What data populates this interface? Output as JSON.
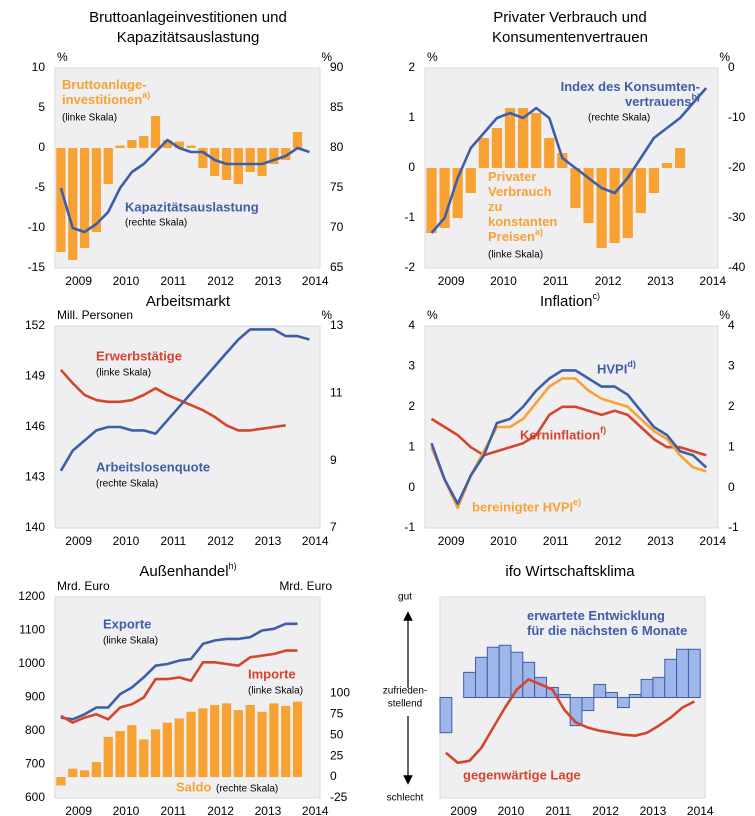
{
  "chart_data": [
    {
      "type": "combo",
      "title": "Bruttoanlageinvestitionen und\nKapazitätsauslastung",
      "y_unit": "%",
      "y2_unit": "%",
      "ylim": [
        -15,
        10
      ],
      "yticks": [
        -15,
        -10,
        -5,
        0,
        5,
        10
      ],
      "y2lim": [
        65,
        90
      ],
      "y2ticks": [
        65,
        70,
        75,
        80,
        85,
        90
      ],
      "xlim": [
        2009,
        2014.6
      ],
      "xticks": [
        {
          "value": 2009.5,
          "label": "2009"
        },
        {
          "value": 2010.5,
          "label": "2010"
        },
        {
          "value": 2011.5,
          "label": "2011"
        },
        {
          "value": 2012.5,
          "label": "2012"
        },
        {
          "value": 2013.5,
          "label": "2013"
        },
        {
          "value": 2014.5,
          "label": "2014"
        }
      ],
      "x": [
        2009.125,
        2009.375,
        2009.625,
        2009.875,
        2010.125,
        2010.375,
        2010.625,
        2010.875,
        2011.125,
        2011.375,
        2011.625,
        2011.875,
        2012.125,
        2012.375,
        2012.625,
        2012.875,
        2013.125,
        2013.375,
        2013.625,
        2013.875,
        2014.125,
        2014.375
      ],
      "series": [
        {
          "name": "Bruttoanlage-\ninvestitionen",
          "sup": "a)",
          "scale": "(linke Skala)",
          "kind": "bar",
          "axis": "y",
          "color": "#f7a233",
          "values": [
            -13,
            -14,
            -12.5,
            -10.5,
            -4.5,
            0.3,
            1,
            1.5,
            4,
            1,
            0.8,
            0.3,
            -2.5,
            -3.5,
            -4,
            -4.5,
            -3,
            -3.5,
            -2,
            -1.5,
            2,
            null
          ]
        },
        {
          "name": "Kapazitätsauslastung",
          "scale": "(rechte Skala)",
          "kind": "line",
          "axis": "y2",
          "color": "#3f5ea8",
          "values": [
            75,
            70,
            69.5,
            70.5,
            72,
            75,
            77,
            78,
            79.5,
            81,
            80,
            79.5,
            79.5,
            78.5,
            78,
            78,
            78,
            78,
            78.5,
            79,
            80,
            79.5
          ]
        }
      ]
    },
    {
      "type": "combo",
      "title": "Privater Verbrauch und\nKonsumentenvertrauen",
      "y_unit": "%",
      "y2_unit": "%",
      "ylim": [
        -2,
        2
      ],
      "yticks": [
        -2,
        -1,
        0,
        1,
        2
      ],
      "y2lim": [
        -40,
        0
      ],
      "y2ticks": [
        -40,
        -30,
        -20,
        -10,
        0
      ],
      "xlim": [
        2009,
        2014.6
      ],
      "xticks": [
        {
          "value": 2009.5,
          "label": "2009"
        },
        {
          "value": 2010.5,
          "label": "2010"
        },
        {
          "value": 2011.5,
          "label": "2011"
        },
        {
          "value": 2012.5,
          "label": "2012"
        },
        {
          "value": 2013.5,
          "label": "2013"
        },
        {
          "value": 2014.5,
          "label": "2014"
        }
      ],
      "x": [
        2009.125,
        2009.375,
        2009.625,
        2009.875,
        2010.125,
        2010.375,
        2010.625,
        2010.875,
        2011.125,
        2011.375,
        2011.625,
        2011.875,
        2012.125,
        2012.375,
        2012.625,
        2012.875,
        2013.125,
        2013.375,
        2013.625,
        2013.875,
        2014.125,
        2014.375
      ],
      "series": [
        {
          "name": "Privater\nVerbrauch\nzu\nkonstanten\nPreisen",
          "sup": "a)",
          "scale": "(linke Skala)",
          "kind": "bar",
          "axis": "y",
          "color": "#f7a233",
          "values": [
            -1.3,
            -1.2,
            -1,
            -0.5,
            0.6,
            0.8,
            1.2,
            1.2,
            1.1,
            0.6,
            0.3,
            -0.8,
            -1.1,
            -1.6,
            -1.5,
            -1.4,
            -0.9,
            -0.5,
            0.1,
            0.4,
            null,
            null
          ]
        },
        {
          "name": "Index des Konsumten-\nvertrauens",
          "sup": "b)",
          "scale": "(rechte Skala)",
          "kind": "line",
          "axis": "y2",
          "color": "#3f5ea8",
          "values": [
            -33,
            -30,
            -22,
            -16,
            -13,
            -10,
            -9,
            -10,
            -8,
            -10,
            -18,
            -20,
            -22,
            -24,
            -25,
            -22,
            -18,
            -14,
            -12,
            -10,
            -7,
            -4
          ]
        }
      ]
    },
    {
      "type": "line",
      "title": "Arbeitsmarkt",
      "y_unit": "Mill. Personen",
      "y2_unit": "%",
      "ylim": [
        140,
        152
      ],
      "yticks": [
        140,
        143,
        146,
        149,
        152
      ],
      "y2lim": [
        7,
        13
      ],
      "y2ticks": [
        7,
        9,
        11,
        13
      ],
      "xlim": [
        2009,
        2014.6
      ],
      "xticks": [
        {
          "value": 2009.5,
          "label": "2009"
        },
        {
          "value": 2010.5,
          "label": "2010"
        },
        {
          "value": 2011.5,
          "label": "2011"
        },
        {
          "value": 2012.5,
          "label": "2012"
        },
        {
          "value": 2013.5,
          "label": "2013"
        },
        {
          "value": 2014.5,
          "label": "2014"
        }
      ],
      "x": [
        2009.125,
        2009.375,
        2009.625,
        2009.875,
        2010.125,
        2010.375,
        2010.625,
        2010.875,
        2011.125,
        2011.375,
        2011.625,
        2011.875,
        2012.125,
        2012.375,
        2012.625,
        2012.875,
        2013.125,
        2013.375,
        2013.625,
        2013.875,
        2014.125,
        2014.375
      ],
      "series": [
        {
          "name": "Erwerbstätige",
          "scale": "(linke Skala)",
          "kind": "line",
          "axis": "y",
          "color": "#d5452b",
          "values": [
            149.4,
            148.6,
            147.9,
            147.6,
            147.5,
            147.5,
            147.6,
            147.9,
            148.3,
            147.9,
            147.6,
            147.3,
            147.0,
            146.6,
            146.1,
            145.8,
            145.8,
            145.9,
            146.0,
            146.1,
            null,
            null
          ]
        },
        {
          "name": "Arbeitslosenquote",
          "scale": "(rechte Skala)",
          "kind": "line",
          "axis": "y2",
          "color": "#3f5ea8",
          "values": [
            8.7,
            9.3,
            9.6,
            9.9,
            10,
            10,
            9.9,
            9.9,
            9.8,
            10.2,
            10.6,
            11.0,
            11.4,
            11.8,
            12.2,
            12.6,
            12.9,
            12.9,
            12.9,
            12.7,
            12.7,
            12.6
          ]
        }
      ]
    },
    {
      "type": "line",
      "title": "Inflation",
      "title_sup": "c)",
      "y_unit": "%",
      "y2_unit": "%",
      "ylim": [
        -1,
        4
      ],
      "yticks": [
        -1,
        0,
        1,
        2,
        3,
        4
      ],
      "y2lim": [
        -1,
        4
      ],
      "y2ticks": [
        -1,
        0,
        1,
        2,
        3,
        4
      ],
      "xlim": [
        2009,
        2014.6
      ],
      "xticks": [
        {
          "value": 2009.5,
          "label": "2009"
        },
        {
          "value": 2010.5,
          "label": "2010"
        },
        {
          "value": 2011.5,
          "label": "2011"
        },
        {
          "value": 2012.5,
          "label": "2012"
        },
        {
          "value": 2013.5,
          "label": "2013"
        },
        {
          "value": 2014.5,
          "label": "2014"
        }
      ],
      "x": [
        2009.125,
        2009.375,
        2009.625,
        2009.875,
        2010.125,
        2010.375,
        2010.625,
        2010.875,
        2011.125,
        2011.375,
        2011.625,
        2011.875,
        2012.125,
        2012.375,
        2012.625,
        2012.875,
        2013.125,
        2013.375,
        2013.625,
        2013.875,
        2014.125,
        2014.375
      ],
      "series": [
        {
          "name": "Kerninflation",
          "sup": "f)",
          "kind": "line",
          "axis": "y",
          "color": "#d5452b",
          "values": [
            1.7,
            1.5,
            1.3,
            1.0,
            0.8,
            0.9,
            1.0,
            1.1,
            1.3,
            1.8,
            2.0,
            2.0,
            1.9,
            1.8,
            1.9,
            1.8,
            1.5,
            1.2,
            1.0,
            1.0,
            0.9,
            0.8
          ]
        },
        {
          "name": "bereinigter HVPI",
          "sup": "e)",
          "kind": "line",
          "axis": "y",
          "color": "#f7a233",
          "values": [
            1.0,
            0.2,
            -0.5,
            0.3,
            0.9,
            1.5,
            1.5,
            1.7,
            2.1,
            2.5,
            2.7,
            2.7,
            2.4,
            2.2,
            2.1,
            2.0,
            1.7,
            1.4,
            1.2,
            0.8,
            0.5,
            0.4
          ]
        },
        {
          "name": "HVPI",
          "sup": "d)",
          "kind": "line",
          "axis": "y",
          "color": "#3f5ea8",
          "values": [
            1.1,
            0.2,
            -0.4,
            0.3,
            0.8,
            1.6,
            1.7,
            2.0,
            2.4,
            2.7,
            2.9,
            2.9,
            2.7,
            2.5,
            2.5,
            2.3,
            1.9,
            1.5,
            1.3,
            0.9,
            0.8,
            0.5
          ]
        }
      ]
    },
    {
      "type": "combo",
      "title": "Außenhandel",
      "title_sup": "h)",
      "y_unit": "Mrd. Euro",
      "y2_unit": "Mrd. Euro",
      "ylim": [
        600,
        1200
      ],
      "yticks": [
        600,
        700,
        800,
        900,
        1000,
        1100,
        1200
      ],
      "y2lim": [
        -25,
        215
      ],
      "y2ticks": [
        -25,
        0,
        25,
        50,
        75,
        100
      ],
      "xlim": [
        2009,
        2014.6
      ],
      "xticks": [
        {
          "value": 2009.5,
          "label": "2009"
        },
        {
          "value": 2010.5,
          "label": "2010"
        },
        {
          "value": 2011.5,
          "label": "2011"
        },
        {
          "value": 2012.5,
          "label": "2012"
        },
        {
          "value": 2013.5,
          "label": "2013"
        },
        {
          "value": 2014.5,
          "label": "2014"
        }
      ],
      "x": [
        2009.125,
        2009.375,
        2009.625,
        2009.875,
        2010.125,
        2010.375,
        2010.625,
        2010.875,
        2011.125,
        2011.375,
        2011.625,
        2011.875,
        2012.125,
        2012.375,
        2012.625,
        2012.875,
        2013.125,
        2013.375,
        2013.625,
        2013.875,
        2014.125,
        2014.375
      ],
      "series": [
        {
          "name": "Saldo",
          "scale": "(rechte Skala)",
          "kind": "bar",
          "axis": "y2",
          "color": "#f7a233",
          "values": [
            -10,
            10,
            8,
            18,
            48,
            55,
            62,
            45,
            57,
            65,
            70,
            78,
            82,
            86,
            88,
            80,
            86,
            78,
            88,
            85,
            90,
            null
          ]
        },
        {
          "name": "Exporte",
          "scale": "(linke Skala)",
          "kind": "line",
          "axis": "y",
          "color": "#3f5ea8",
          "values": [
            840,
            835,
            850,
            870,
            870,
            910,
            930,
            960,
            995,
            1000,
            1010,
            1015,
            1060,
            1070,
            1075,
            1075,
            1080,
            1100,
            1105,
            1120,
            1120,
            null
          ]
        },
        {
          "name": "Importe",
          "scale": "(linke Skala)",
          "kind": "line",
          "axis": "y",
          "color": "#d5452b",
          "values": [
            845,
            825,
            840,
            850,
            835,
            870,
            880,
            900,
            955,
            955,
            960,
            950,
            1005,
            1005,
            1000,
            995,
            1020,
            1025,
            1030,
            1040,
            1040,
            null
          ]
        }
      ]
    },
    {
      "type": "combo",
      "title": "ifo Wirtschaftsklima",
      "ylim": [
        -10,
        10
      ],
      "yticks": [
        {
          "value": -10,
          "label": "schlecht"
        },
        {
          "value": 0,
          "label": "zufrieden-\nstellend"
        },
        {
          "value": 10,
          "label": "gut"
        }
      ],
      "xlim": [
        2009,
        2014.6
      ],
      "xticks": [
        {
          "value": 2009.5,
          "label": "2009"
        },
        {
          "value": 2010.5,
          "label": "2010"
        },
        {
          "value": 2011.5,
          "label": "2011"
        },
        {
          "value": 2012.5,
          "label": "2012"
        },
        {
          "value": 2013.5,
          "label": "2013"
        },
        {
          "value": 2014.5,
          "label": "2014"
        }
      ],
      "x": [
        2009.125,
        2009.375,
        2009.625,
        2009.875,
        2010.125,
        2010.375,
        2010.625,
        2010.875,
        2011.125,
        2011.375,
        2011.625,
        2011.875,
        2012.125,
        2012.375,
        2012.625,
        2012.875,
        2013.125,
        2013.375,
        2013.625,
        2013.875,
        2014.125,
        2014.375
      ],
      "series": [
        {
          "name": "erwartete Entwicklung\nfür die nächsten 6 Monate",
          "kind": "bar",
          "axis": "y",
          "color": "#9fb6ea",
          "values": [
            -3.5,
            0,
            2.5,
            4,
            5,
            5.2,
            4.5,
            3.5,
            2,
            1,
            0.3,
            -2.8,
            -1.3,
            1.3,
            0.5,
            -1,
            0.3,
            1.8,
            2,
            3.8,
            4.8,
            4.8
          ]
        },
        {
          "name": "gegenwärtige Lage",
          "kind": "line",
          "axis": "y",
          "color": "#d5452b",
          "values": [
            -5.5,
            -6.5,
            -6.3,
            -5,
            -3,
            -1,
            0.8,
            1.8,
            1.3,
            0.8,
            -1.2,
            -2.5,
            -3,
            -3.3,
            -3.5,
            -3.7,
            -3.8,
            -3.5,
            -2.8,
            -2,
            -1,
            -0.4
          ]
        }
      ]
    }
  ]
}
